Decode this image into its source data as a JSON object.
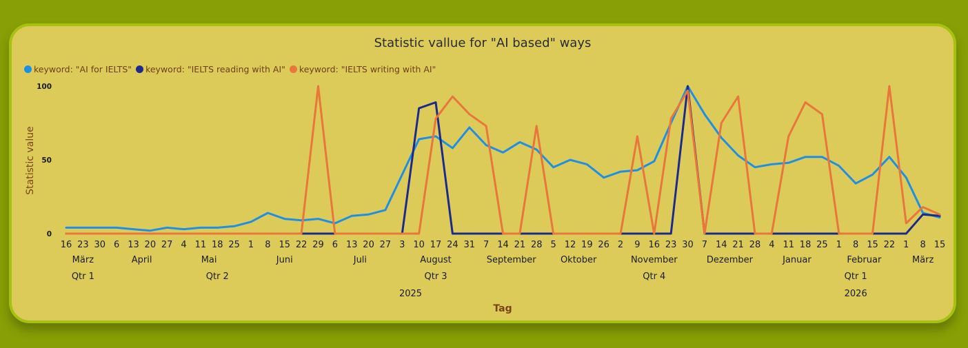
{
  "chart_data": {
    "type": "line",
    "title": "Statistic vallue for \"AI based\" ways",
    "ylabel": "Statistic value",
    "xlabel": "Tag",
    "ylim": [
      0,
      100
    ],
    "yticks": [
      0,
      50,
      100
    ],
    "x": [
      "2025-03-16",
      "2025-03-23",
      "2025-03-30",
      "2025-04-06",
      "2025-04-13",
      "2025-04-20",
      "2025-04-27",
      "2025-05-04",
      "2025-05-11",
      "2025-05-18",
      "2025-05-25",
      "2025-06-01",
      "2025-06-08",
      "2025-06-15",
      "2025-06-22",
      "2025-06-29",
      "2025-07-06",
      "2025-07-13",
      "2025-07-20",
      "2025-07-27",
      "2025-08-03",
      "2025-08-10",
      "2025-08-17",
      "2025-08-24",
      "2025-08-31",
      "2025-09-07",
      "2025-09-14",
      "2025-09-21",
      "2025-09-28",
      "2025-10-05",
      "2025-10-12",
      "2025-10-19",
      "2025-10-26",
      "2025-11-02",
      "2025-11-09",
      "2025-11-16",
      "2025-11-23",
      "2025-11-30",
      "2025-12-07",
      "2025-12-14",
      "2025-12-21",
      "2025-12-28",
      "2026-01-04",
      "2026-01-11",
      "2026-01-18",
      "2026-01-25",
      "2026-02-01",
      "2026-02-08",
      "2026-02-15",
      "2026-02-22",
      "2026-03-01",
      "2026-03-08",
      "2026-03-15"
    ],
    "day_labels": [
      "16",
      "23",
      "30",
      "6",
      "13",
      "20",
      "27",
      "4",
      "11",
      "18",
      "25",
      "1",
      "8",
      "15",
      "22",
      "29",
      "6",
      "13",
      "20",
      "27",
      "3",
      "10",
      "17",
      "24",
      "31",
      "7",
      "14",
      "21",
      "28",
      "5",
      "12",
      "19",
      "26",
      "2",
      "9",
      "16",
      "23",
      "30",
      "7",
      "14",
      "21",
      "28",
      "4",
      "11",
      "18",
      "25",
      "1",
      "8",
      "15",
      "22",
      "1",
      "8",
      "15"
    ],
    "months": [
      {
        "label": "März",
        "start": 0,
        "end": 2
      },
      {
        "label": "April",
        "start": 3,
        "end": 6
      },
      {
        "label": "Mai",
        "start": 7,
        "end": 10
      },
      {
        "label": "Juni",
        "start": 11,
        "end": 15
      },
      {
        "label": "Juli",
        "start": 16,
        "end": 19
      },
      {
        "label": "August",
        "start": 20,
        "end": 24
      },
      {
        "label": "September",
        "start": 25,
        "end": 28
      },
      {
        "label": "Oktober",
        "start": 29,
        "end": 32
      },
      {
        "label": "November",
        "start": 33,
        "end": 37
      },
      {
        "label": "Dezember",
        "start": 38,
        "end": 41
      },
      {
        "label": "Januar",
        "start": 42,
        "end": 45
      },
      {
        "label": "Februar",
        "start": 46,
        "end": 49
      },
      {
        "label": "März",
        "start": 50,
        "end": 52
      }
    ],
    "quarters": [
      {
        "label": "Qtr 1",
        "start": 0,
        "end": 2
      },
      {
        "label": "Qtr 2",
        "start": 3,
        "end": 15
      },
      {
        "label": "Qtr 3",
        "start": 16,
        "end": 28
      },
      {
        "label": "Qtr 4",
        "start": 29,
        "end": 41
      },
      {
        "label": "Qtr 1",
        "start": 42,
        "end": 52
      }
    ],
    "years": [
      {
        "label": "2025",
        "start": 0,
        "end": 41
      },
      {
        "label": "2026",
        "start": 42,
        "end": 52
      }
    ],
    "series": [
      {
        "name": "keyword: \"AI for IELTS\"",
        "color": "#1e8fe6",
        "values": [
          4,
          4,
          4,
          4,
          3,
          2,
          4,
          3,
          4,
          4,
          5,
          8,
          14,
          10,
          9,
          10,
          7,
          12,
          13,
          16,
          40,
          64,
          66,
          58,
          72,
          60,
          55,
          62,
          57,
          45,
          50,
          47,
          38,
          42,
          43,
          49,
          75,
          100,
          81,
          65,
          53,
          45,
          47,
          48,
          52,
          52,
          46,
          34,
          40,
          52,
          38,
          14,
          11
        ]
      },
      {
        "name": "keyword: \"IELTS reading with AI\"",
        "color": "#1b2a8c",
        "values": [
          0,
          0,
          0,
          0,
          0,
          0,
          0,
          0,
          0,
          0,
          0,
          0,
          0,
          0,
          0,
          0,
          0,
          0,
          0,
          0,
          0,
          85,
          89,
          0,
          0,
          0,
          0,
          0,
          0,
          0,
          0,
          0,
          0,
          0,
          0,
          0,
          0,
          100,
          0,
          0,
          0,
          0,
          0,
          0,
          0,
          0,
          0,
          0,
          0,
          0,
          0,
          13,
          12
        ]
      },
      {
        "name": "keyword: \"IELTS writing with AI\"",
        "color": "#e9763a",
        "values": [
          0,
          0,
          0,
          0,
          0,
          0,
          0,
          0,
          0,
          0,
          0,
          0,
          0,
          0,
          0,
          100,
          0,
          0,
          0,
          0,
          0,
          0,
          78,
          93,
          81,
          73,
          0,
          0,
          73,
          0,
          0,
          0,
          0,
          0,
          66,
          0,
          78,
          97,
          0,
          75,
          93,
          0,
          0,
          66,
          89,
          81,
          0,
          0,
          0,
          100,
          7,
          18,
          13
        ]
      }
    ]
  }
}
